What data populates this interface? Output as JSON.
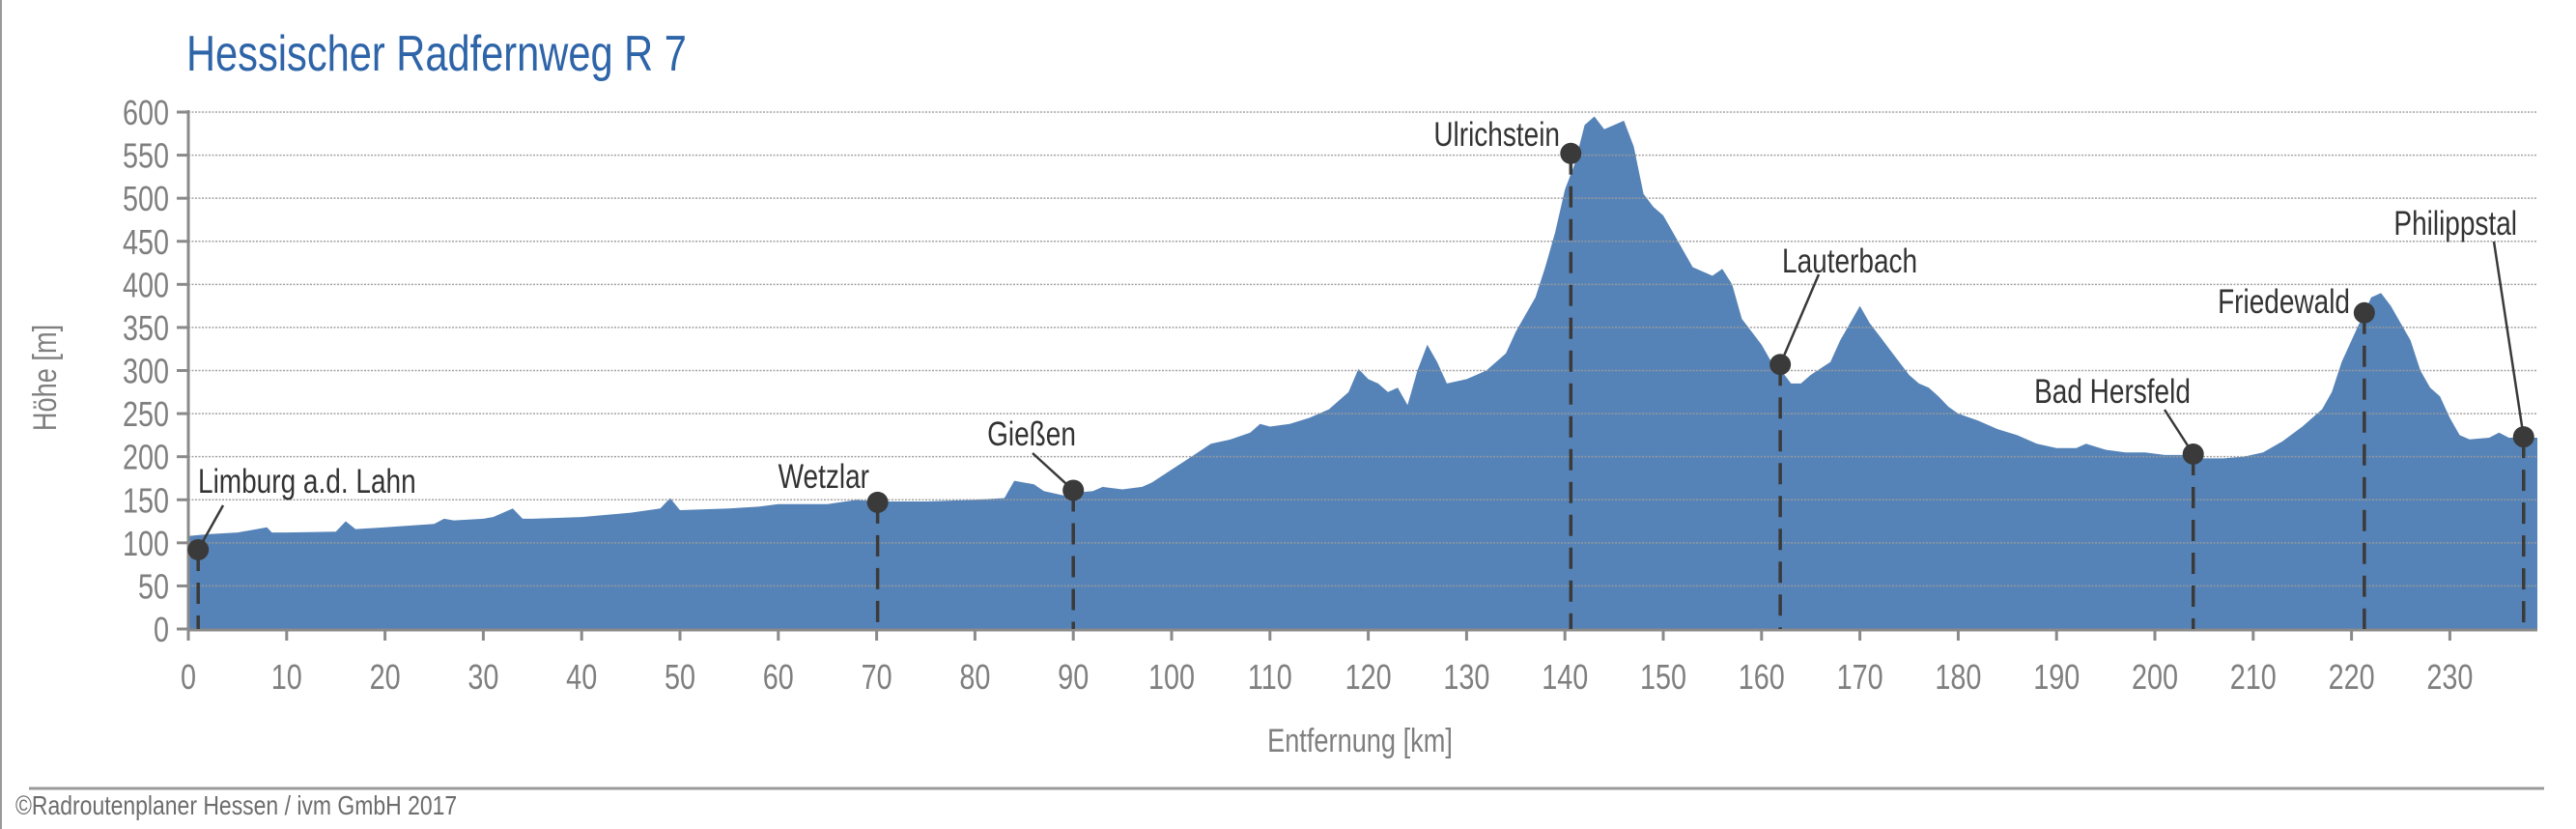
{
  "title": "Hessischer Radfernweg R 7",
  "footer": "©Radroutenplaner Hessen / ivm GmbH 2017",
  "colors": {
    "fill": "#5683b7",
    "title": "#2e64a8",
    "marker": "#3a3a3a",
    "axis": "#8a8a8a",
    "text": "#7f7f7f"
  },
  "chart_data": {
    "type": "area",
    "title": "Hessischer Radfernweg R 7",
    "xlabel": "Entfernung [km]",
    "ylabel": "Höhe [m]",
    "xlim": [
      0,
      238.9
    ],
    "ylim": [
      0,
      600
    ],
    "grid": true,
    "x_ticks": [
      "0",
      "10",
      "20",
      "30",
      "40",
      "50",
      "60",
      "70",
      "80",
      "90",
      "100",
      "110",
      "120",
      "130",
      "140",
      "150",
      "160",
      "170",
      "180",
      "190",
      "200",
      "210",
      "220",
      "230"
    ],
    "y_ticks": [
      "0",
      "50",
      "100",
      "150",
      "200",
      "250",
      "300",
      "350",
      "400",
      "450",
      "500",
      "550",
      "600"
    ],
    "profile": {
      "km": [
        0,
        2,
        5,
        8,
        8.5,
        10,
        15,
        16,
        17,
        20,
        25,
        26,
        27,
        30,
        31,
        33,
        34,
        35,
        40,
        45,
        48,
        49,
        50,
        55,
        58,
        60,
        65,
        68,
        70,
        75,
        80,
        83,
        84,
        86,
        87,
        89,
        90,
        92,
        93,
        95,
        97,
        98,
        100,
        102,
        104,
        106,
        108,
        109,
        110,
        112,
        114,
        116,
        118,
        119,
        120,
        121,
        122,
        123,
        124,
        125,
        126,
        127,
        128,
        130,
        132,
        134,
        135,
        136,
        137,
        138,
        139,
        140,
        141,
        142,
        143,
        144,
        145,
        146,
        147,
        148,
        149,
        150,
        151,
        152,
        153,
        155,
        156,
        157,
        158,
        159,
        160,
        161,
        162,
        163,
        164,
        165,
        167,
        168,
        169,
        170,
        171,
        172,
        173,
        174,
        175,
        176,
        177,
        178,
        179,
        180,
        182,
        184,
        186,
        188,
        190,
        192,
        193,
        195,
        197,
        199,
        201,
        203,
        205,
        207,
        209,
        211,
        213,
        215,
        217,
        218,
        219,
        220,
        221,
        222,
        223,
        224,
        225,
        226,
        227,
        228,
        229,
        230,
        231,
        232,
        234,
        235,
        236,
        238,
        238.9
      ],
      "elevation_m": [
        108,
        110,
        112,
        118,
        112,
        112,
        113,
        125,
        116,
        118,
        122,
        128,
        126,
        128,
        130,
        140,
        128,
        128,
        130,
        135,
        140,
        152,
        138,
        140,
        142,
        145,
        145,
        150,
        148,
        148,
        150,
        152,
        172,
        168,
        160,
        155,
        158,
        160,
        165,
        162,
        165,
        170,
        185,
        200,
        215,
        220,
        228,
        238,
        235,
        238,
        245,
        255,
        275,
        302,
        290,
        285,
        275,
        280,
        260,
        300,
        330,
        310,
        285,
        290,
        300,
        320,
        345,
        365,
        385,
        420,
        460,
        510,
        540,
        585,
        595,
        580,
        585,
        590,
        560,
        505,
        490,
        480,
        460,
        440,
        420,
        410,
        418,
        400,
        360,
        345,
        330,
        310,
        300,
        285,
        285,
        295,
        310,
        335,
        355,
        375,
        355,
        340,
        325,
        310,
        295,
        285,
        280,
        270,
        258,
        250,
        242,
        232,
        225,
        215,
        210,
        210,
        215,
        208,
        205,
        205,
        202,
        202,
        198,
        198,
        200,
        205,
        218,
        235,
        255,
        275,
        310,
        335,
        360,
        385,
        390,
        375,
        355,
        335,
        300,
        280,
        270,
        245,
        225,
        220,
        222,
        228,
        222,
        222,
        222
      ]
    },
    "waypoints": [
      {
        "name": "Limburg a.d. Lahn",
        "km": 1.0,
        "elevation_m": 92
      },
      {
        "name": "Wetzlar",
        "km": 70.1,
        "elevation_m": 147
      },
      {
        "name": "Gießen",
        "km": 90.0,
        "elevation_m": 161
      },
      {
        "name": "Ulrichstein",
        "km": 140.6,
        "elevation_m": 552
      },
      {
        "name": "Lauterbach",
        "km": 161.9,
        "elevation_m": 307
      },
      {
        "name": "Bad Hersfeld",
        "km": 203.9,
        "elevation_m": 203
      },
      {
        "name": "Friedewald",
        "km": 221.3,
        "elevation_m": 367
      },
      {
        "name": "Philippstal",
        "km": 237.5,
        "elevation_m": 223
      }
    ]
  }
}
